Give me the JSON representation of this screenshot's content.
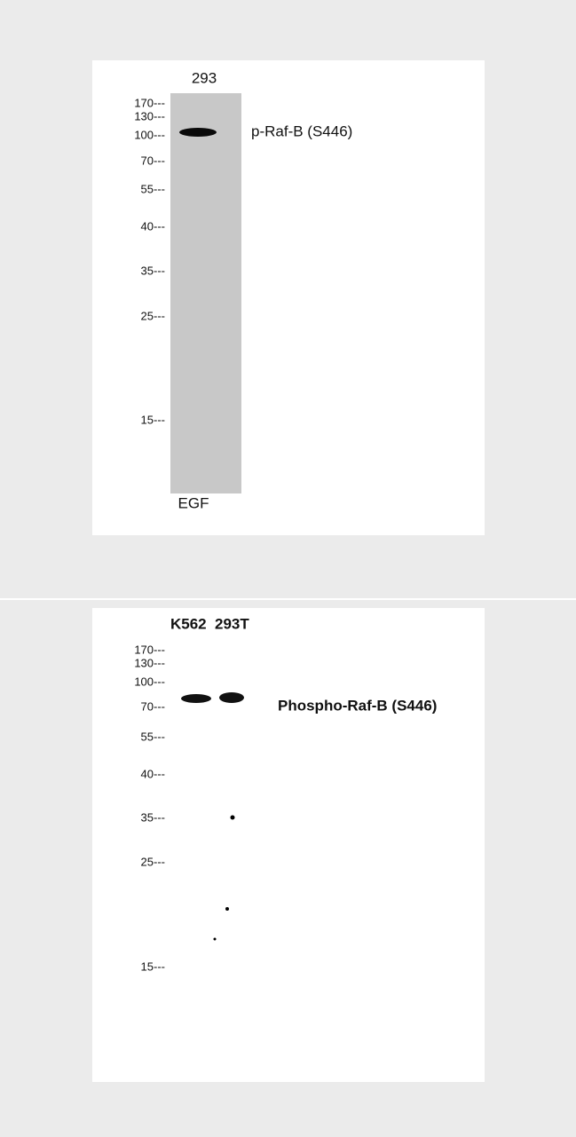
{
  "panels": [
    {
      "lanes": [
        "293"
      ],
      "markers": [
        "170---",
        "130---",
        "100---",
        "70---",
        "55---",
        "40---",
        "35---",
        "25---",
        "15---"
      ],
      "band_label": "p-Raf-B (S446)",
      "treatment": "EGF"
    },
    {
      "lanes": [
        "K562",
        "293T"
      ],
      "markers": [
        "170---",
        "130---",
        "100---",
        "70---",
        "55---",
        "40---",
        "35---",
        "25---",
        "15---"
      ],
      "band_label": "Phospho-Raf-B (S446)"
    }
  ]
}
